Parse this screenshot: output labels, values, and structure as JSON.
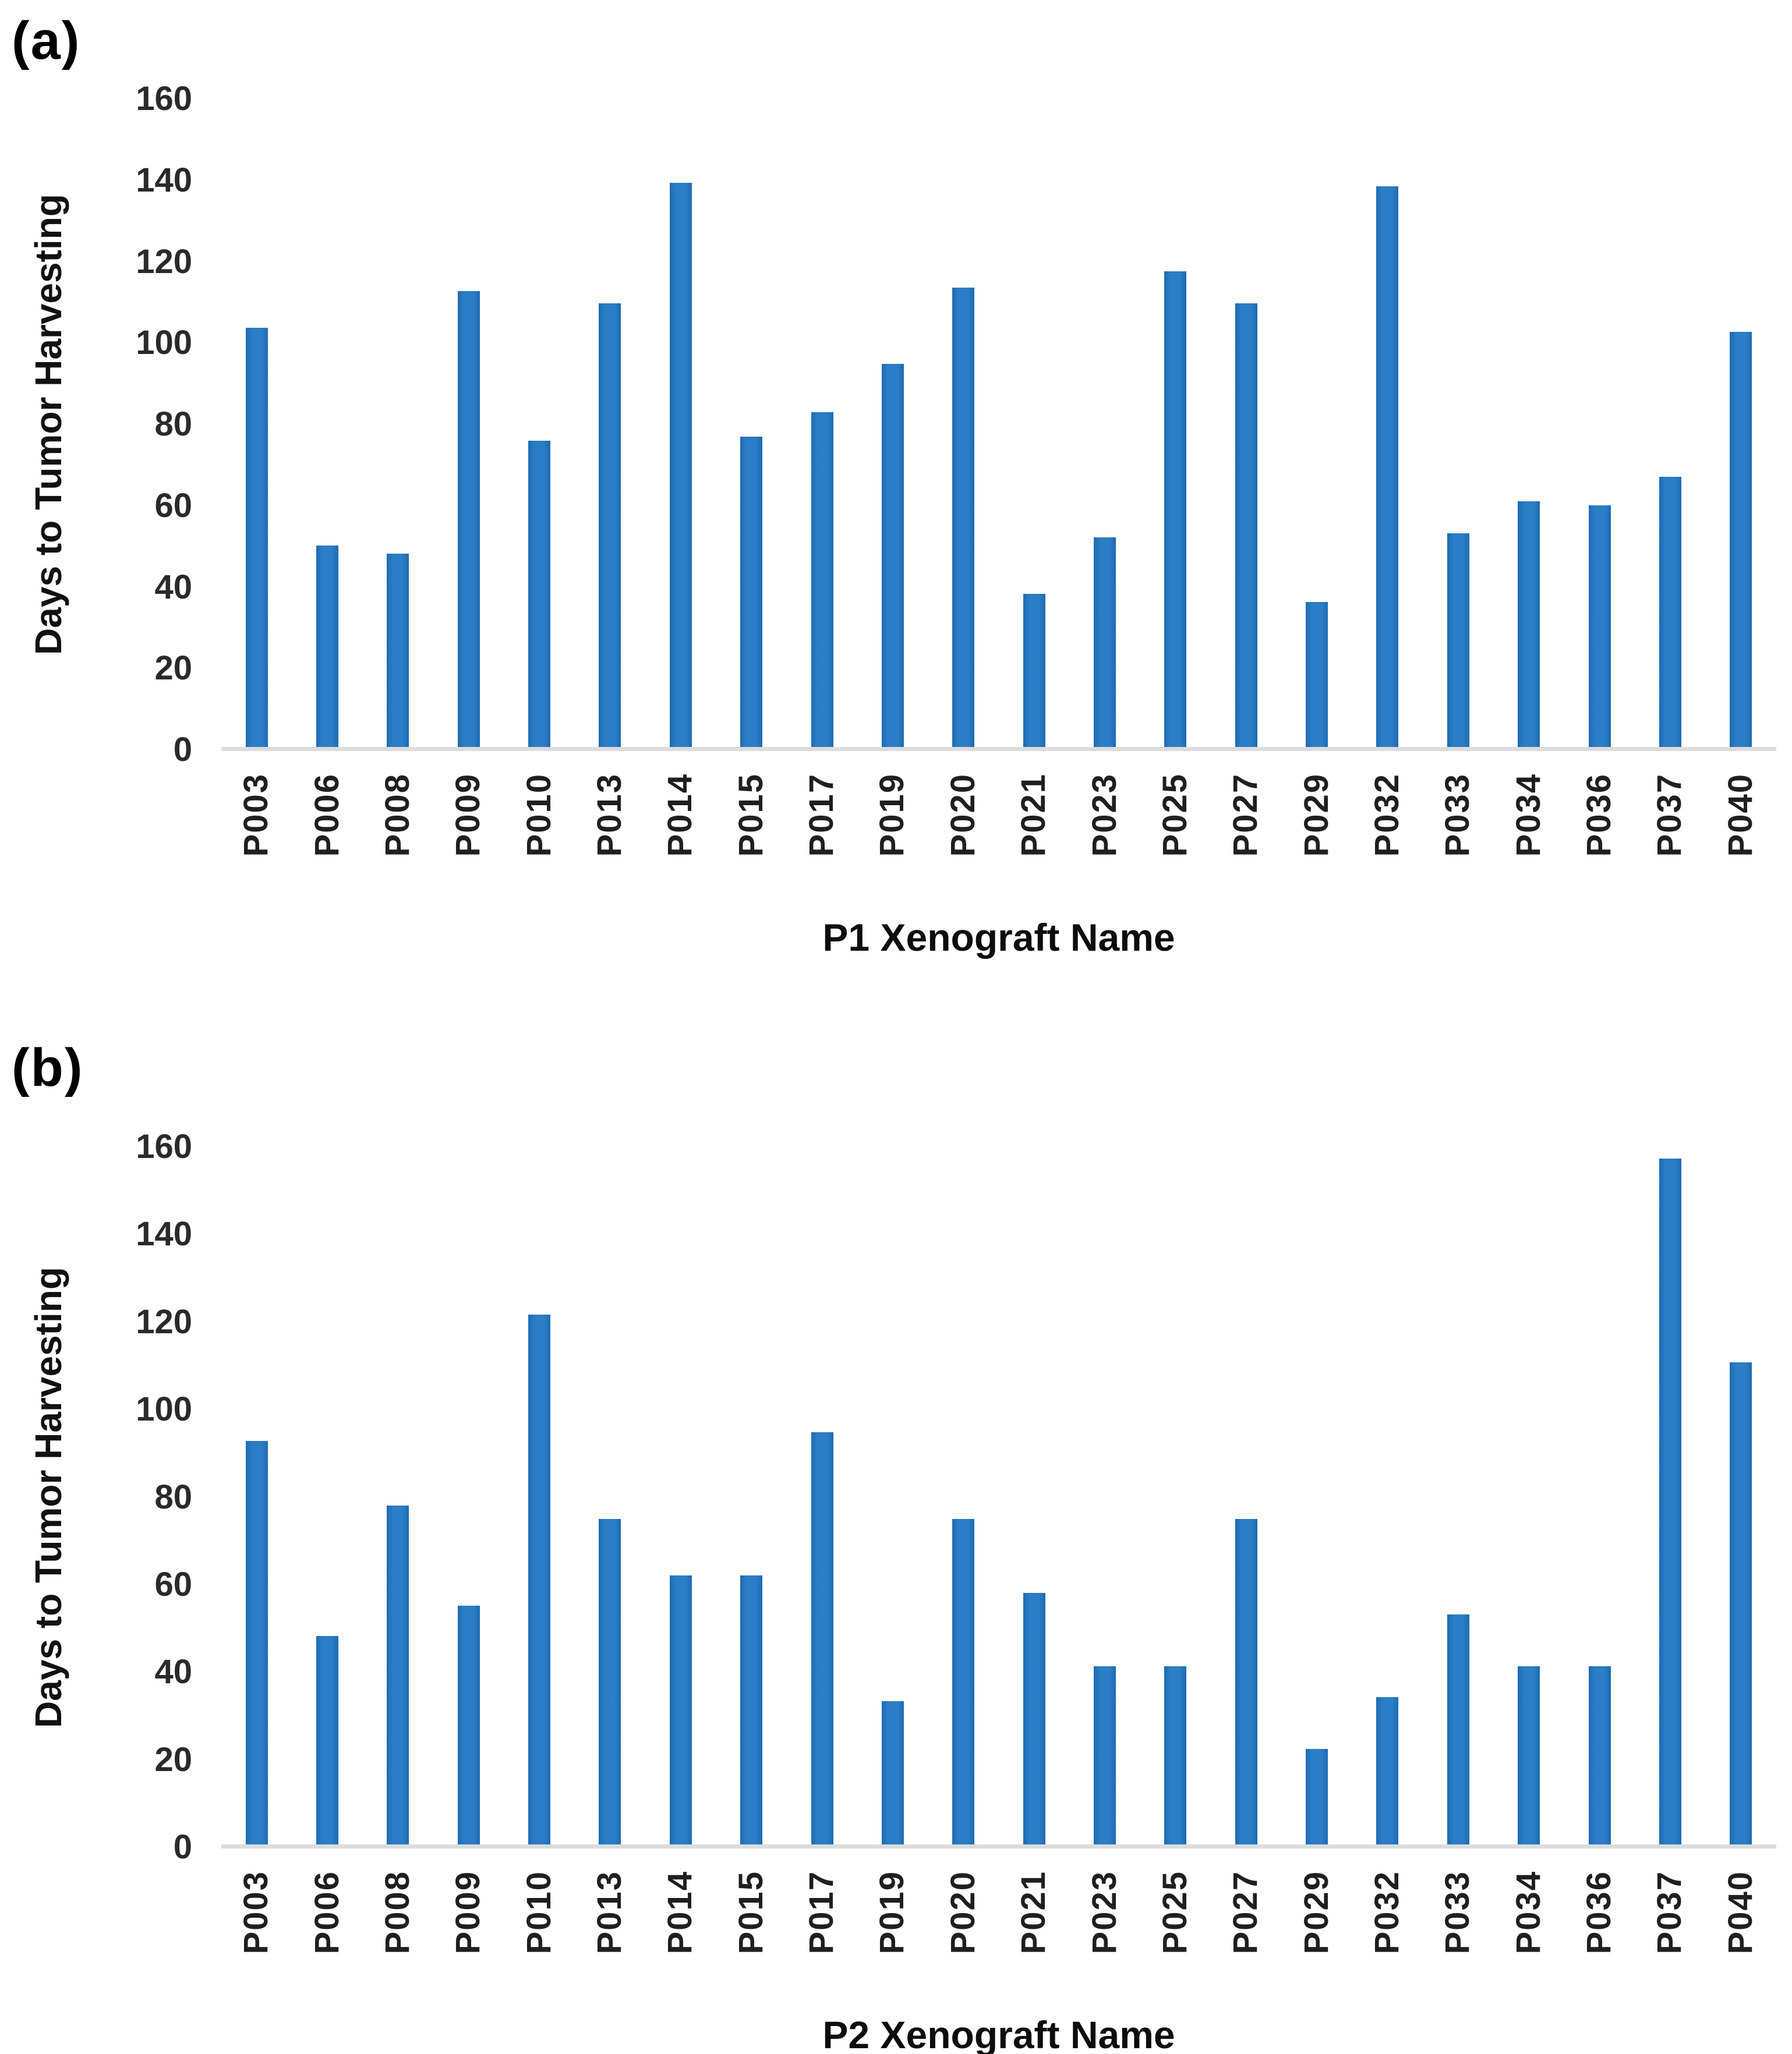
{
  "figure": {
    "panels": [
      {
        "tag": "(a)"
      },
      {
        "tag": "(b)"
      }
    ],
    "colors": {
      "bar": "#2b7dc5",
      "bar_edge": "#1d6bb2",
      "axis_line": "#dcdcdc",
      "text": "#1c1c1c"
    }
  },
  "chart_data": [
    {
      "type": "bar",
      "panel": "(a)",
      "title": "",
      "xlabel": "P1 Xenograft Name",
      "ylabel": "Days to Tumor Harvesting",
      "ylim": [
        0,
        160
      ],
      "yticks": [
        0,
        20,
        40,
        60,
        80,
        100,
        120,
        140,
        160
      ],
      "grid": false,
      "legend_position": "none",
      "categories": [
        "P003",
        "P006",
        "P008",
        "P009",
        "P010",
        "P013",
        "P014",
        "P015",
        "P017",
        "P019",
        "P020",
        "P021",
        "P023",
        "P025",
        "P027",
        "P029",
        "P032",
        "P033",
        "P034",
        "P036",
        "P037",
        "P040"
      ],
      "values": [
        104,
        50,
        48,
        113,
        76,
        110,
        140,
        77,
        83,
        95,
        114,
        38,
        52,
        118,
        110,
        36,
        139,
        53,
        61,
        60,
        67,
        103
      ]
    },
    {
      "type": "bar",
      "panel": "(b)",
      "title": "",
      "xlabel": "P2 Xenograft Name",
      "ylabel": "Days to Tumor Harvesting",
      "ylim": [
        0,
        160
      ],
      "yticks": [
        0,
        20,
        40,
        60,
        80,
        100,
        120,
        140,
        160
      ],
      "grid": false,
      "legend_position": "none",
      "categories": [
        "P003",
        "P006",
        "P008",
        "P009",
        "P010",
        "P013",
        "P014",
        "P015",
        "P017",
        "P019",
        "P020",
        "P021",
        "P023",
        "P025",
        "P027",
        "P029",
        "P032",
        "P033",
        "P034",
        "P036",
        "P037",
        "P040"
      ],
      "values": [
        93,
        48,
        78,
        55,
        122,
        75,
        62,
        62,
        95,
        33,
        75,
        58,
        41,
        41,
        75,
        22,
        34,
        53,
        41,
        41,
        158,
        111
      ]
    }
  ]
}
